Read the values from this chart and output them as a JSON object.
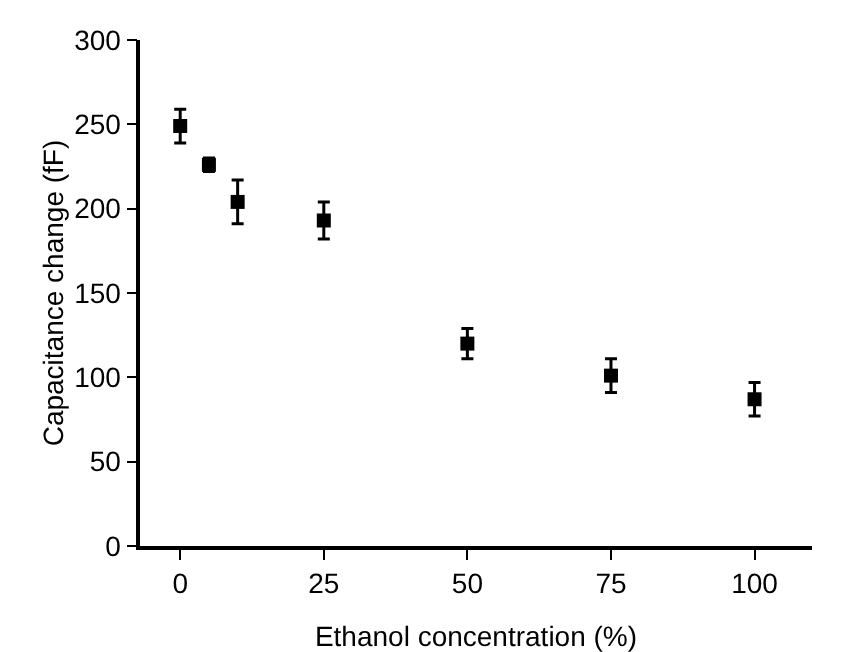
{
  "chart_data": {
    "type": "scatter",
    "xlabel": "Ethanol concentration (%)",
    "ylabel": "Capacitance change (fF)",
    "x": [
      0,
      5,
      10,
      25,
      50,
      75,
      100
    ],
    "values": [
      249,
      226,
      204,
      193,
      120,
      101,
      87
    ],
    "errors": [
      10,
      4,
      13,
      11,
      9,
      10,
      10
    ],
    "color": "#000000",
    "marker": "square",
    "xlim": [
      -7,
      110
    ],
    "xticks": [
      0,
      25,
      50,
      75,
      100
    ],
    "ylim": [
      0,
      300
    ],
    "yticks": [
      0,
      50,
      100,
      150,
      200,
      250,
      300
    ],
    "grid": false,
    "legend": false
  }
}
